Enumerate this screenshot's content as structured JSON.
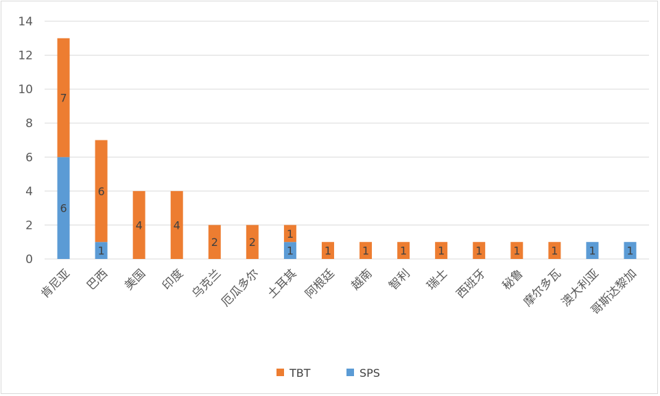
{
  "chart_data": {
    "type": "bar",
    "stacked": true,
    "title": "",
    "xlabel": "",
    "ylabel": "",
    "ylim": [
      0,
      14
    ],
    "yticks": [
      0,
      2,
      4,
      6,
      8,
      10,
      12,
      14
    ],
    "grid": true,
    "legend_position": "bottom",
    "categories": [
      "肯尼亚",
      "巴西",
      "美国",
      "印度",
      "乌克兰",
      "厄瓜多尔",
      "土耳其",
      "阿根廷",
      "越南",
      "智利",
      "瑞士",
      "西班牙",
      "秘鲁",
      "摩尔多瓦",
      "澳大利亚",
      "哥斯达黎加"
    ],
    "series": [
      {
        "name": "SPS",
        "color": "#5B9BD5",
        "values": [
          6,
          1,
          0,
          0,
          0,
          0,
          1,
          0,
          0,
          0,
          0,
          0,
          0,
          0,
          1,
          1
        ]
      },
      {
        "name": "TBT",
        "color": "#ED7D31",
        "values": [
          7,
          6,
          4,
          4,
          2,
          2,
          1,
          1,
          1,
          1,
          1,
          1,
          1,
          1,
          0,
          0
        ]
      }
    ],
    "legend_order": [
      "TBT",
      "SPS"
    ]
  }
}
